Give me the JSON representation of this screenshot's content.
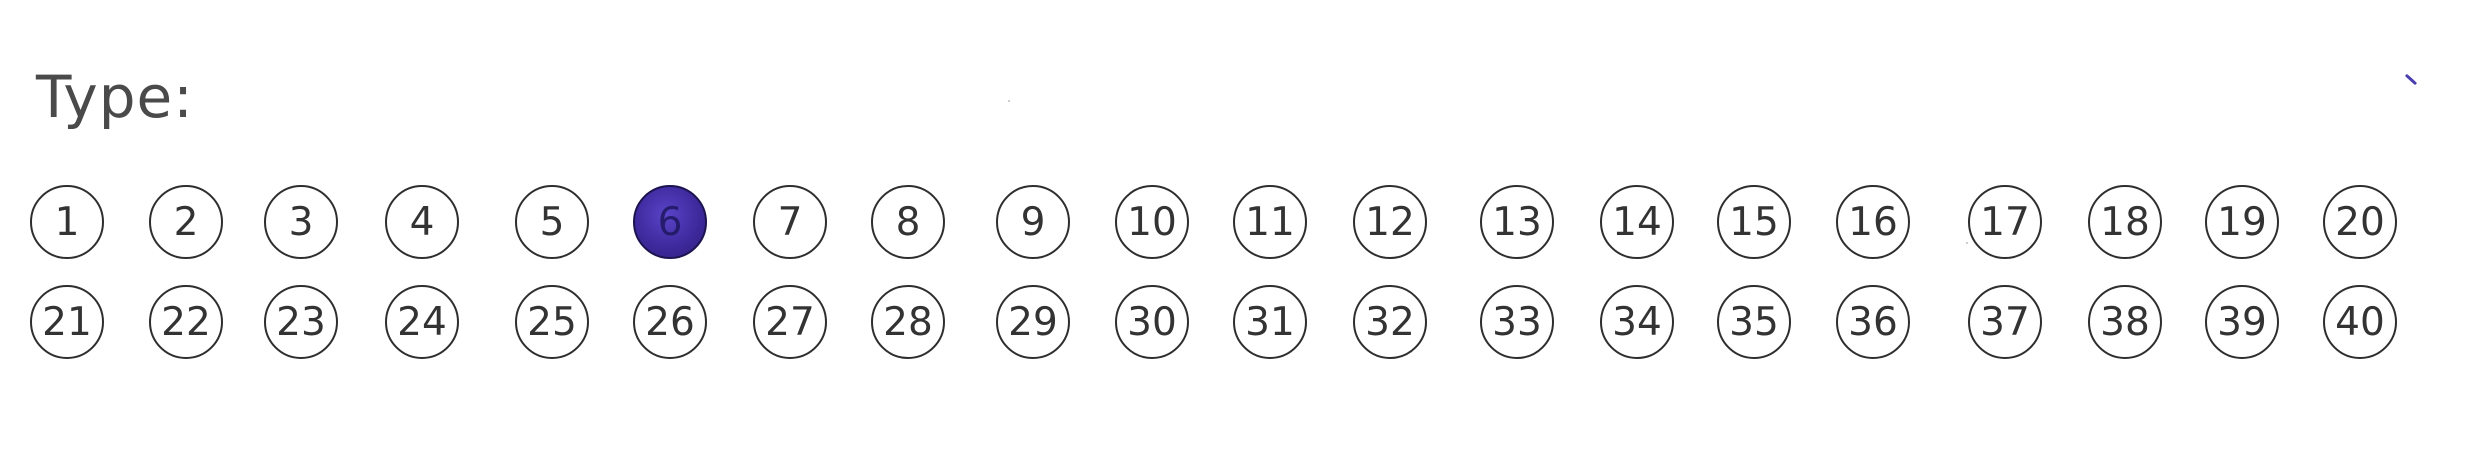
{
  "form": {
    "label": "Type:",
    "selected": "6",
    "options": [
      {
        "num": "1",
        "filled": false
      },
      {
        "num": "2",
        "filled": false
      },
      {
        "num": "3",
        "filled": false
      },
      {
        "num": "4",
        "filled": false
      },
      {
        "num": "5",
        "filled": false
      },
      {
        "num": "6",
        "filled": true
      },
      {
        "num": "7",
        "filled": false
      },
      {
        "num": "8",
        "filled": false
      },
      {
        "num": "9",
        "filled": false
      },
      {
        "num": "10",
        "filled": false
      },
      {
        "num": "11",
        "filled": false
      },
      {
        "num": "12",
        "filled": false
      },
      {
        "num": "13",
        "filled": false
      },
      {
        "num": "14",
        "filled": false
      },
      {
        "num": "15",
        "filled": false
      },
      {
        "num": "16",
        "filled": false
      },
      {
        "num": "17",
        "filled": false
      },
      {
        "num": "18",
        "filled": false
      },
      {
        "num": "19",
        "filled": false
      },
      {
        "num": "20",
        "filled": false
      },
      {
        "num": "21",
        "filled": false
      },
      {
        "num": "22",
        "filled": false
      },
      {
        "num": "23",
        "filled": false
      },
      {
        "num": "24",
        "filled": false
      },
      {
        "num": "25",
        "filled": false
      },
      {
        "num": "26",
        "filled": false
      },
      {
        "num": "27",
        "filled": false
      },
      {
        "num": "28",
        "filled": false
      },
      {
        "num": "29",
        "filled": false
      },
      {
        "num": "30",
        "filled": false
      },
      {
        "num": "31",
        "filled": false
      },
      {
        "num": "32",
        "filled": false
      },
      {
        "num": "33",
        "filled": false
      },
      {
        "num": "34",
        "filled": false
      },
      {
        "num": "35",
        "filled": false
      },
      {
        "num": "36",
        "filled": false
      },
      {
        "num": "37",
        "filled": false
      },
      {
        "num": "38",
        "filled": false
      },
      {
        "num": "39",
        "filled": false
      },
      {
        "num": "40",
        "filled": false
      }
    ]
  },
  "colors": {
    "fill_ink": "#3f2a9e",
    "bubble_outline": "#2e2e2e",
    "label_text": "#4a4a4a"
  }
}
